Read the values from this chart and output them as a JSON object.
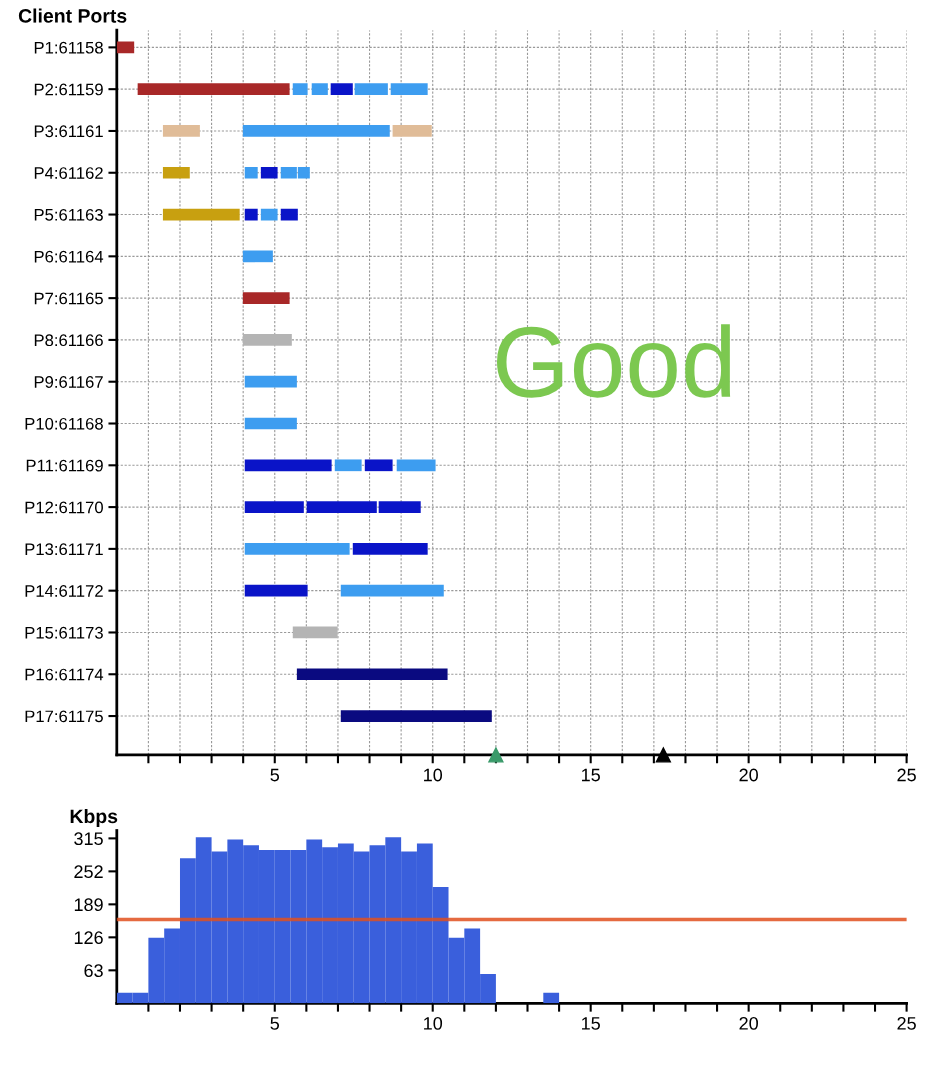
{
  "chart_data": [
    {
      "type": "bar",
      "orientation": "horizontal",
      "title": "Client Ports",
      "categories": [
        "P1:61158",
        "P2:61159",
        "P3:61161",
        "P4:61162",
        "P5:61163",
        "P6:61164",
        "P7:61165",
        "P8:61166",
        "P9:61167",
        "P10:61168",
        "P11:61169",
        "P12:61170",
        "P13:61171",
        "P14:61172",
        "P15:61173",
        "P16:61174",
        "P17:61175"
      ],
      "series": [
        {
          "base": [
            0,
            0.66,
            1.46,
            1.46,
            1.46,
            3.99,
            3.99,
            3.99,
            4.05,
            4.05,
            4.05,
            4.05,
            4.05,
            4.05,
            5.57,
            5.7,
            7.09
          ],
          "values": [
            0.55,
            4.81,
            1.17,
            0.85,
            2.43,
            0.95,
            1.48,
            1.55,
            1.65,
            1.65,
            2.75,
            1.87,
            3.32,
            1.99,
            1.42,
            4.77,
            4.78
          ],
          "colors": [
            "#a82828",
            "#a82828",
            "#e0bc98",
            "#c8a010",
            "#c8a010",
            "#3d9df0",
            "#a82828",
            "#b4b4b4",
            "#3d9df0",
            "#3d9df0",
            "#0a14c8",
            "#0a14c8",
            "#3d9df0",
            "#0a14c8",
            "#b4b4b4",
            "#0a0a80",
            "#0a0a80"
          ]
        },
        {
          "base": [
            null,
            5.57,
            3.99,
            4.05,
            4.05,
            null,
            null,
            null,
            null,
            null,
            6.9,
            6.01,
            7.47,
            7.09,
            null,
            null,
            null
          ],
          "values": [
            null,
            0.47,
            4.65,
            0.41,
            0.41,
            null,
            null,
            null,
            null,
            null,
            0.85,
            2.22,
            2.37,
            3.26,
            null,
            null,
            null
          ],
          "colors": [
            null,
            "#3d9df0",
            "#3d9df0",
            "#3d9df0",
            "#0a14c8",
            null,
            null,
            null,
            null,
            null,
            "#3d9df0",
            "#0a14c8",
            "#0a14c8",
            "#3d9df0",
            null,
            null,
            null
          ]
        },
        {
          "base": [
            null,
            6.17,
            8.73,
            4.56,
            4.56,
            null,
            null,
            null,
            null,
            null,
            7.85,
            8.29,
            null,
            null,
            null,
            null,
            null
          ],
          "values": [
            null,
            0.51,
            1.24,
            0.53,
            0.53,
            null,
            null,
            null,
            null,
            null,
            0.88,
            1.33,
            null,
            null,
            null,
            null,
            null
          ],
          "colors": [
            null,
            "#3d9df0",
            "#e0bc98",
            "#0a14c8",
            "#3d9df0",
            null,
            null,
            null,
            null,
            null,
            "#0a14c8",
            "#0a14c8",
            null,
            null,
            null,
            null,
            null
          ]
        },
        {
          "base": [
            null,
            6.77,
            null,
            5.19,
            5.19,
            null,
            null,
            null,
            null,
            null,
            8.86,
            null,
            null,
            null,
            null,
            null,
            null
          ],
          "values": [
            null,
            0.7,
            null,
            0.51,
            0.54,
            null,
            null,
            null,
            null,
            null,
            1.23,
            null,
            null,
            null,
            null,
            null,
            null
          ],
          "colors": [
            null,
            "#0a14c8",
            null,
            "#3d9df0",
            "#0a14c8",
            null,
            null,
            null,
            null,
            null,
            "#3d9df0",
            null,
            null,
            null,
            null,
            null,
            null
          ]
        },
        {
          "base": [
            null,
            7.53,
            null,
            5.73,
            null,
            null,
            null,
            null,
            null,
            null,
            null,
            null,
            null,
            null,
            null,
            null,
            null
          ],
          "values": [
            null,
            1.05,
            null,
            0.38,
            null,
            null,
            null,
            null,
            null,
            null,
            null,
            null,
            null,
            null,
            null,
            null,
            null
          ],
          "colors": [
            null,
            "#3d9df0",
            null,
            "#3d9df0",
            null,
            null,
            null,
            null,
            null,
            null,
            null,
            null,
            null,
            null,
            null,
            null,
            null
          ]
        },
        {
          "base": [
            null,
            8.67,
            null,
            null,
            null,
            null,
            null,
            null,
            null,
            null,
            null,
            null,
            null,
            null,
            null,
            null,
            null
          ],
          "values": [
            null,
            1.17,
            null,
            null,
            null,
            null,
            null,
            null,
            null,
            null,
            null,
            null,
            null,
            null,
            null,
            null,
            null
          ],
          "colors": [
            null,
            "#3d9df0",
            null,
            null,
            null,
            null,
            null,
            null,
            null,
            null,
            null,
            null,
            null,
            null,
            null,
            null,
            null
          ]
        }
      ],
      "xlim": [
        0,
        25
      ],
      "xticks": [
        {
          "value": 1,
          "label": null
        },
        {
          "value": 2,
          "label": null
        },
        {
          "value": 3,
          "label": null
        },
        {
          "value": 4,
          "label": null
        },
        5,
        {
          "value": 6,
          "label": null
        },
        {
          "value": 7,
          "label": null
        },
        {
          "value": 8,
          "label": null
        },
        {
          "value": 9,
          "label": null
        },
        10,
        {
          "value": 11,
          "label": null
        },
        {
          "value": 12,
          "label": null
        },
        {
          "value": 13,
          "label": null
        },
        {
          "value": 14,
          "label": null
        },
        15,
        {
          "value": 16,
          "label": null
        },
        {
          "value": 17,
          "label": null
        },
        {
          "value": 18,
          "label": null
        },
        {
          "value": 19,
          "label": null
        },
        20,
        {
          "value": 21,
          "label": null
        },
        {
          "value": 22,
          "label": null
        },
        {
          "value": 23,
          "label": null
        },
        {
          "value": 24,
          "label": null
        },
        25
      ],
      "annotations": [
        "Good"
      ],
      "grid": true
    },
    {
      "type": "histogram",
      "ylabel": "Kbps",
      "bins": [
        0,
        0.5,
        1,
        1.5,
        2,
        2.5,
        3,
        3.5,
        4,
        4.5,
        5,
        5.5,
        6,
        6.5,
        7,
        7.5,
        8,
        8.5,
        9,
        9.5,
        10,
        10.5,
        11,
        11.5,
        12,
        12.5,
        13,
        13.5,
        14
      ],
      "values": [
        20,
        20,
        125,
        143,
        277,
        317,
        290,
        313,
        302,
        293,
        293,
        293,
        313,
        298,
        305,
        290,
        302,
        317,
        290,
        305,
        222,
        125,
        143,
        56,
        0,
        0,
        0,
        20
      ],
      "color": "#3a5fdc",
      "xlim": [
        0,
        25
      ],
      "xticks": [
        {
          "value": 1,
          "label": null
        },
        {
          "value": 2,
          "label": null
        },
        {
          "value": 3,
          "label": null
        },
        {
          "value": 4,
          "label": null
        },
        5,
        {
          "value": 6,
          "label": null
        },
        {
          "value": 7,
          "label": null
        },
        {
          "value": 8,
          "label": null
        },
        {
          "value": 9,
          "label": null
        },
        10,
        {
          "value": 11,
          "label": null
        },
        {
          "value": 12,
          "label": null
        },
        {
          "value": 13,
          "label": null
        },
        {
          "value": 14,
          "label": null
        },
        15,
        {
          "value": 16,
          "label": null
        },
        {
          "value": 17,
          "label": null
        },
        {
          "value": 18,
          "label": null
        },
        {
          "value": 19,
          "label": null
        },
        20,
        {
          "value": 21,
          "label": null
        },
        {
          "value": 22,
          "label": null
        },
        {
          "value": 23,
          "label": null
        },
        {
          "value": 24,
          "label": null
        },
        25
      ],
      "ylim": [
        0,
        330
      ],
      "yticks": [
        63,
        126,
        189,
        252,
        315
      ],
      "ref_lines": [
        {
          "axis": "y",
          "value": 160,
          "color": "#e0501e"
        }
      ]
    }
  ]
}
